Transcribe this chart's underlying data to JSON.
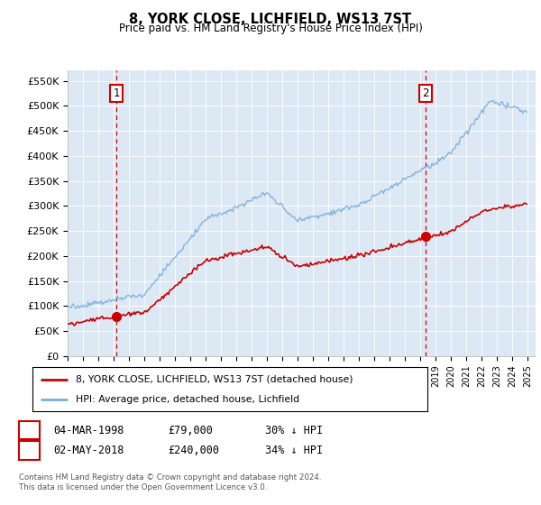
{
  "title": "8, YORK CLOSE, LICHFIELD, WS13 7ST",
  "subtitle": "Price paid vs. HM Land Registry's House Price Index (HPI)",
  "xlim": [
    1995.0,
    2025.5
  ],
  "ylim": [
    0,
    570000
  ],
  "yticks": [
    0,
    50000,
    100000,
    150000,
    200000,
    250000,
    300000,
    350000,
    400000,
    450000,
    500000,
    550000
  ],
  "ytick_labels": [
    "£0",
    "£50K",
    "£100K",
    "£150K",
    "£200K",
    "£250K",
    "£300K",
    "£350K",
    "£400K",
    "£450K",
    "£500K",
    "£550K"
  ],
  "sale1_x": 1998.17,
  "sale1_y": 79000,
  "sale2_x": 2018.33,
  "sale2_y": 240000,
  "sale1_label": "04-MAR-1998",
  "sale1_price": "£79,000",
  "sale1_hpi": "30% ↓ HPI",
  "sale2_label": "02-MAY-2018",
  "sale2_price": "£240,000",
  "sale2_hpi": "34% ↓ HPI",
  "legend_line1": "8, YORK CLOSE, LICHFIELD, WS13 7ST (detached house)",
  "legend_line2": "HPI: Average price, detached house, Lichfield",
  "footer": "Contains HM Land Registry data © Crown copyright and database right 2024.\nThis data is licensed under the Open Government Licence v3.0.",
  "background_color": "#dce9f5",
  "line_red": "#cc0000",
  "line_blue": "#7aaddb",
  "vline_color": "#cc0000",
  "box_color": "#cc0000",
  "grid_color": "#ffffff"
}
